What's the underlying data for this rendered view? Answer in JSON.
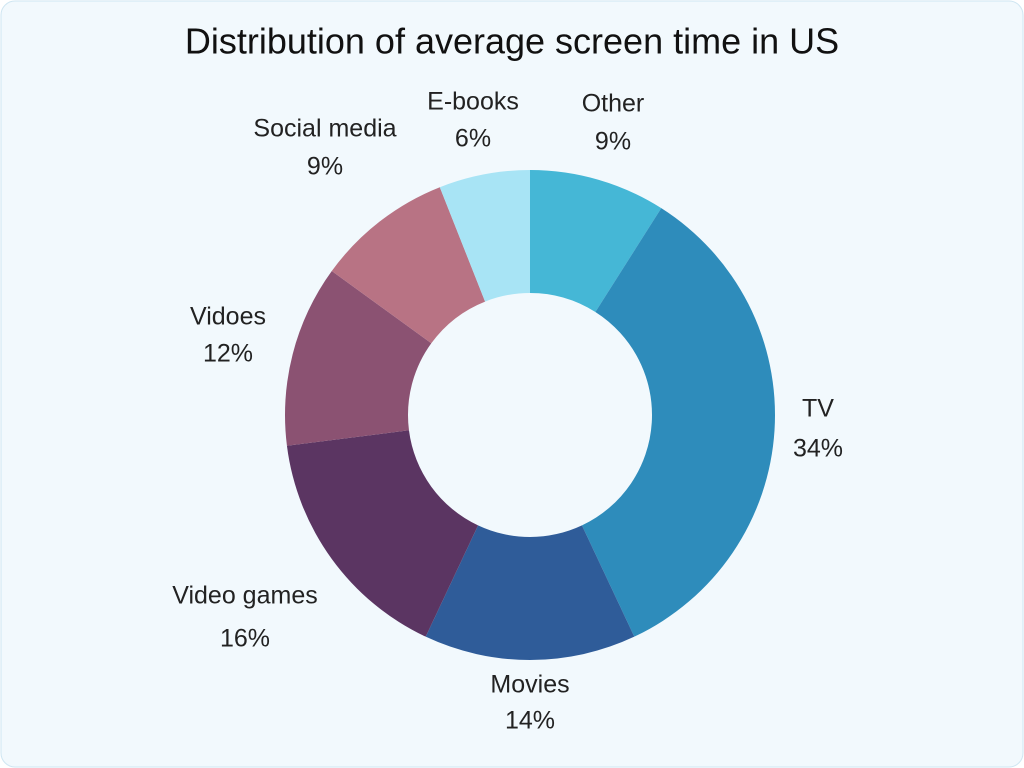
{
  "chart_data": {
    "type": "donut",
    "title": "Distribution of average screen time in US",
    "categories": [
      "Other",
      "TV",
      "Movies",
      "Video games",
      "Vidoes",
      "Social media",
      "E-books"
    ],
    "values": [
      9,
      34,
      14,
      16,
      12,
      9,
      6
    ],
    "value_labels": [
      "9%",
      "34%",
      "14%",
      "16%",
      "12%",
      "9%",
      "6%"
    ],
    "colors": [
      "#45b7d6",
      "#2e8cbb",
      "#2f5c99",
      "#5b3562",
      "#8b5272",
      "#b87384",
      "#a8e4f5"
    ]
  }
}
